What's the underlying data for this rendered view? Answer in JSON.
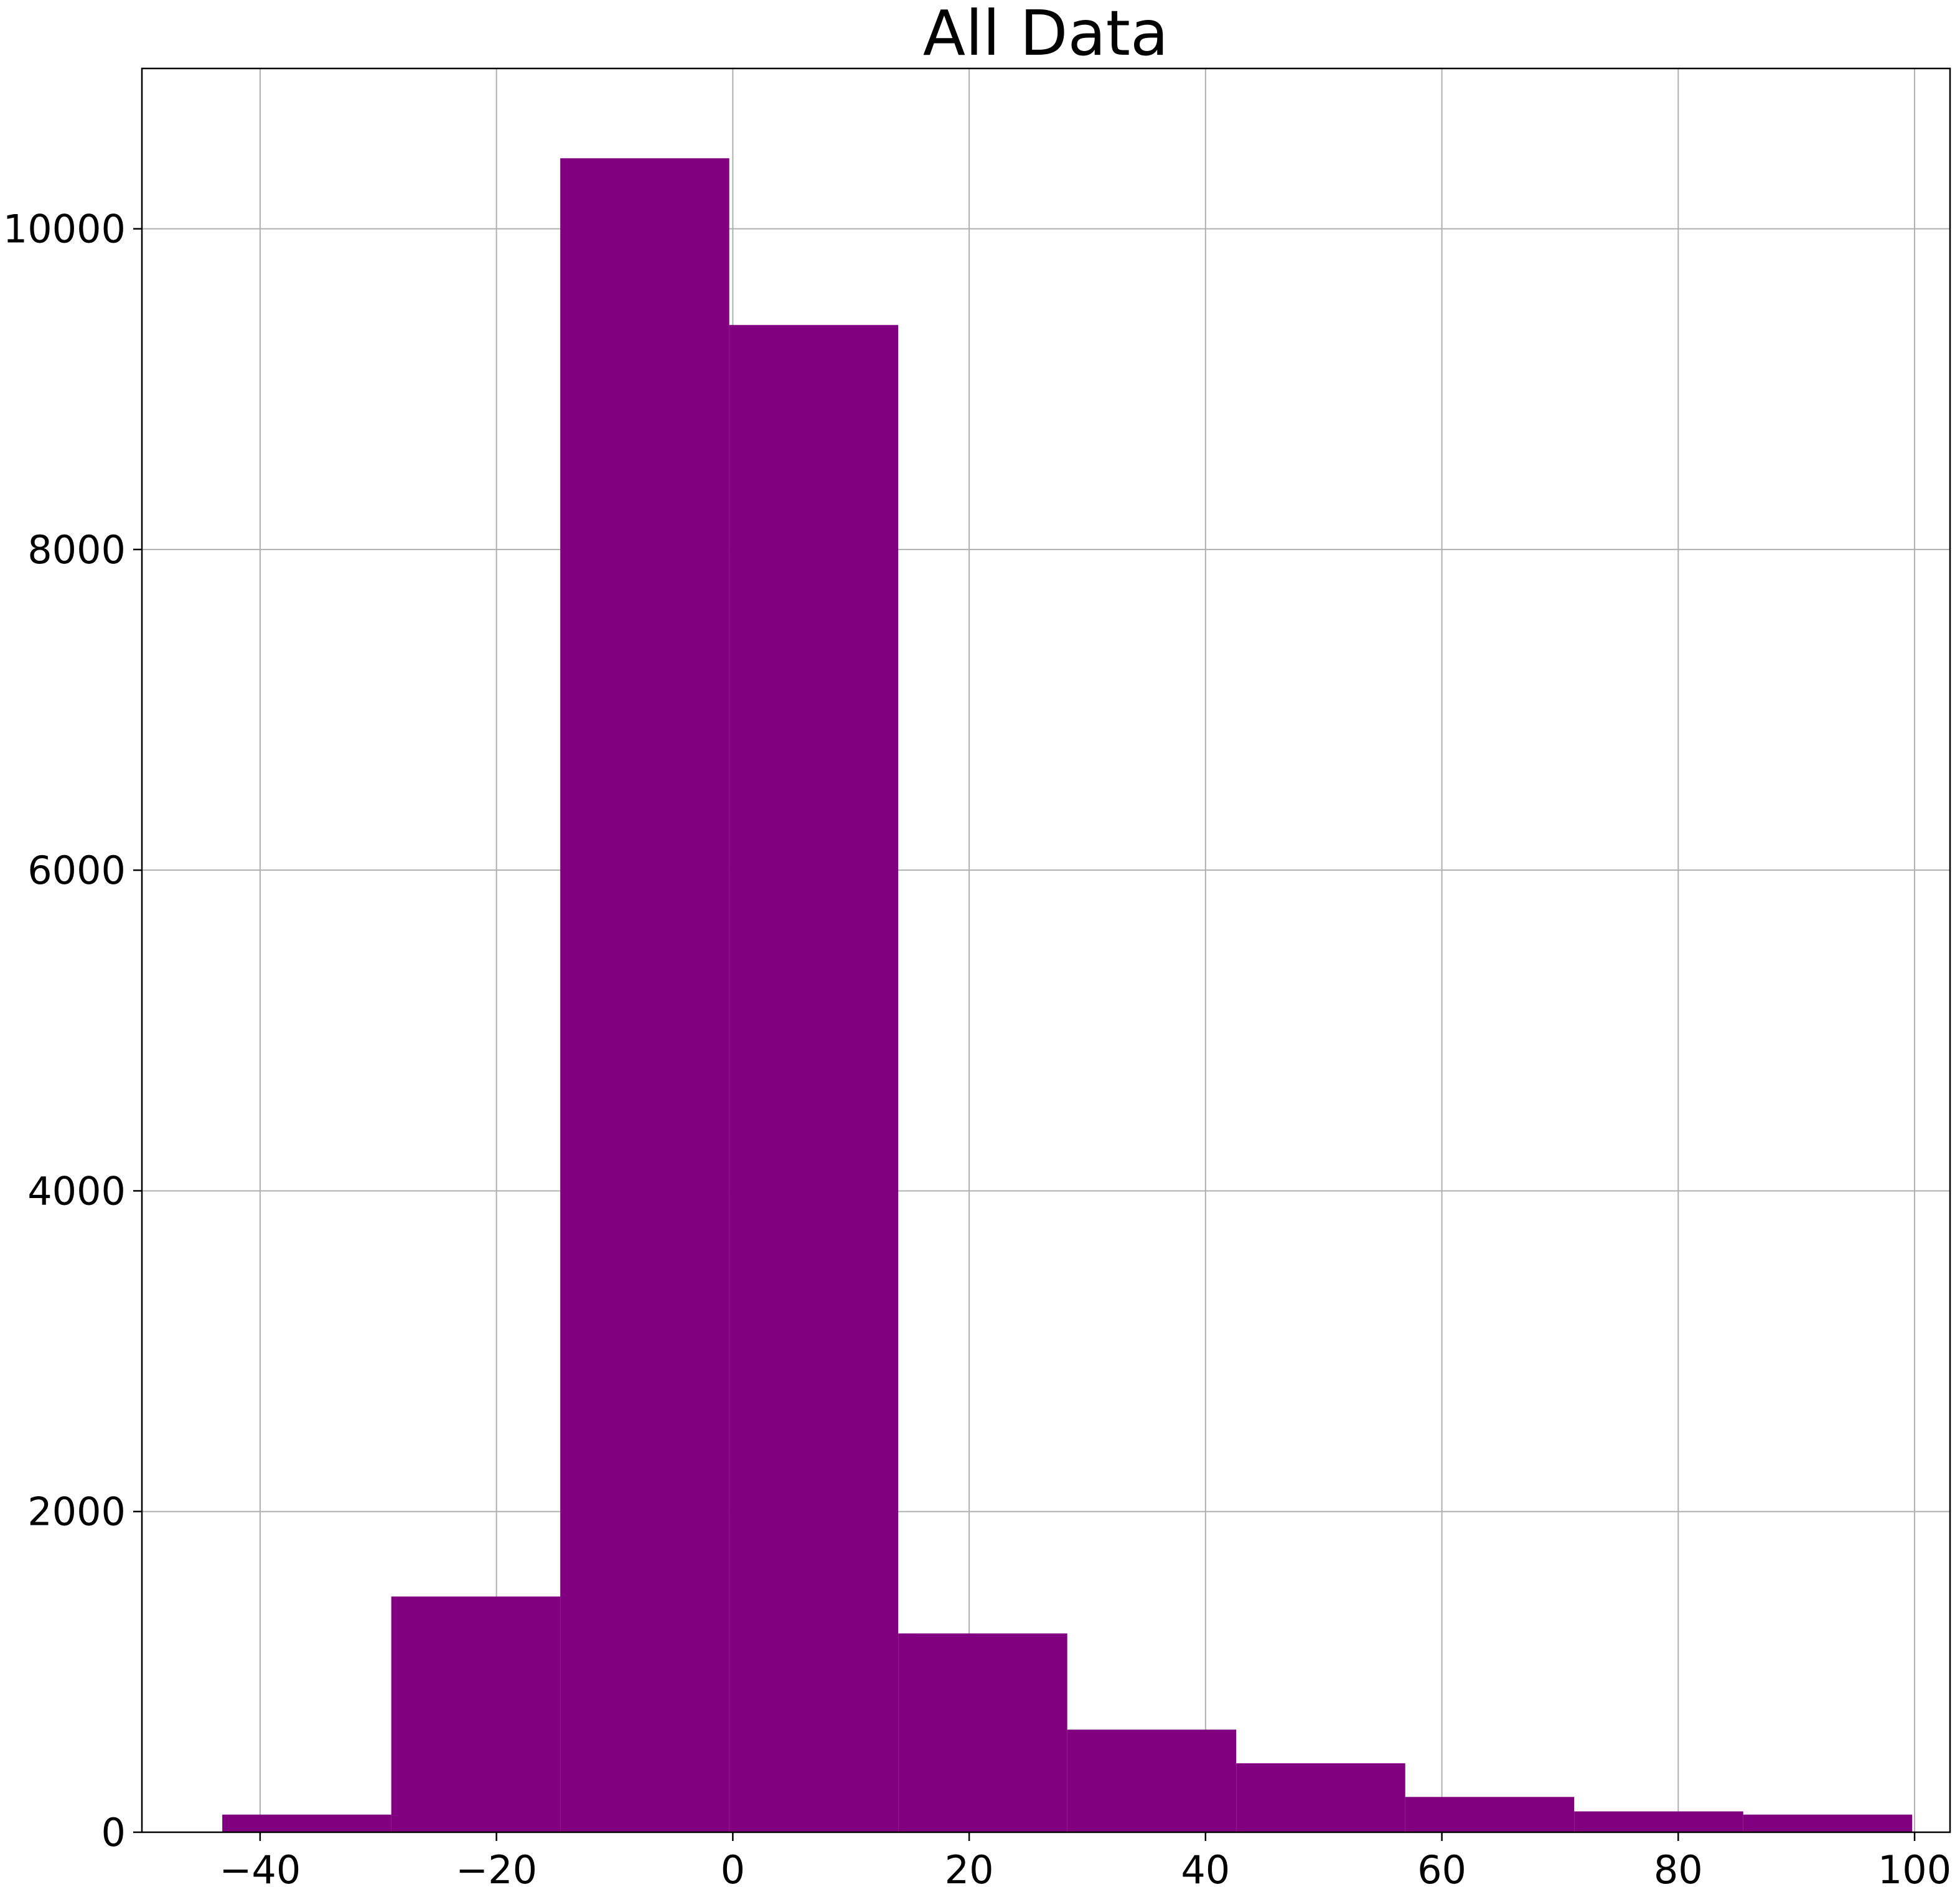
{
  "chart_data": {
    "type": "bar",
    "title": "All Data",
    "xlabel": "",
    "ylabel": "",
    "xlim": [
      -50,
      103
    ],
    "ylim": [
      0,
      11000
    ],
    "x_ticks": [
      -40,
      -20,
      0,
      20,
      40,
      60,
      80,
      100
    ],
    "x_tick_labels": [
      "−40",
      "−20",
      "0",
      "20",
      "40",
      "60",
      "80",
      "100"
    ],
    "y_ticks": [
      0,
      2000,
      4000,
      6000,
      8000,
      10000
    ],
    "y_tick_labels": [
      "0",
      "2000",
      "4000",
      "6000",
      "8000",
      "10000"
    ],
    "grid": true,
    "bin_edges": [
      -43.2,
      -28.9,
      -14.6,
      -0.3,
      14.0,
      28.3,
      42.6,
      56.9,
      71.2,
      85.5,
      99.8
    ],
    "values": [
      110,
      1470,
      10440,
      9400,
      1240,
      640,
      430,
      220,
      130,
      110
    ],
    "colors": {
      "bar": "#800080",
      "grid": "#b0b0b0",
      "axes": "#000000",
      "background": "#ffffff"
    }
  }
}
